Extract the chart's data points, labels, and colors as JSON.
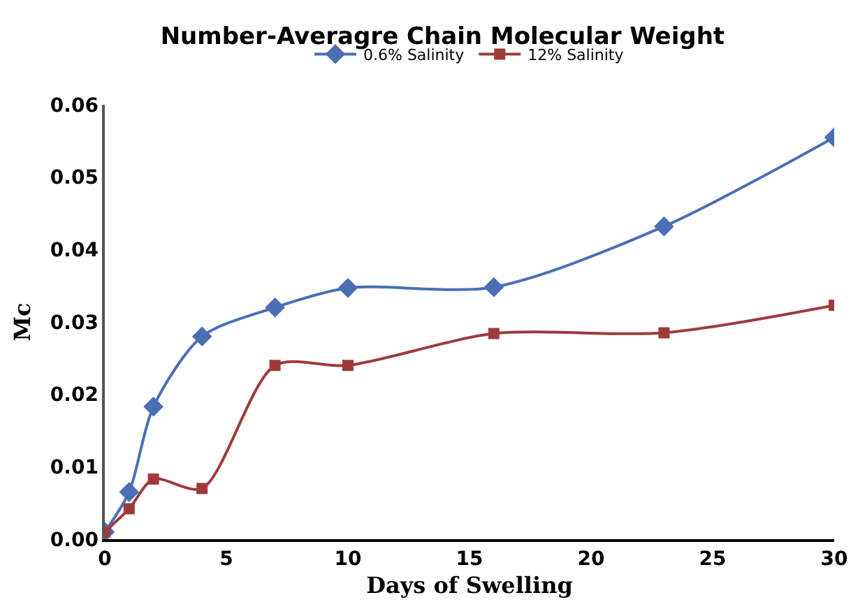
{
  "chart_data": {
    "type": "line",
    "title": "Number-Averagre Chain Molecular Weight",
    "xlabel": "Days of Swelling",
    "ylabel": "Mc",
    "x": [
      0,
      1,
      2,
      4,
      7,
      10,
      16,
      23,
      30
    ],
    "series": [
      {
        "name": "0.6% Salinity",
        "color": "#4a6fb5",
        "marker": "diamond",
        "values": [
          0.001,
          0.0065,
          0.0183,
          0.028,
          0.032,
          0.0347,
          0.0348,
          0.0432,
          0.0555
        ]
      },
      {
        "name": "12% Salinity",
        "color": "#9e3b3a",
        "marker": "square",
        "values": [
          0.001,
          0.0042,
          0.0083,
          0.007,
          0.024,
          0.024,
          0.0284,
          0.0285,
          0.0323
        ]
      }
    ],
    "xlim": [
      0,
      30
    ],
    "xticks": [
      0,
      5,
      10,
      15,
      20,
      25,
      30
    ],
    "ylim": [
      0,
      0.06
    ],
    "yticks": [
      {
        "value": 0,
        "label": "0.00"
      },
      {
        "value": 0.01,
        "label": "0.01"
      },
      {
        "value": 0.02,
        "label": "0.02"
      },
      {
        "value": 0.03,
        "label": "0.03"
      },
      {
        "value": 0.04,
        "label": "0.04"
      },
      {
        "value": 0.05,
        "label": "0.05"
      },
      {
        "value": 0.06,
        "label": "0.06"
      }
    ],
    "grid": false,
    "legend": "top",
    "line_style": "solid"
  }
}
